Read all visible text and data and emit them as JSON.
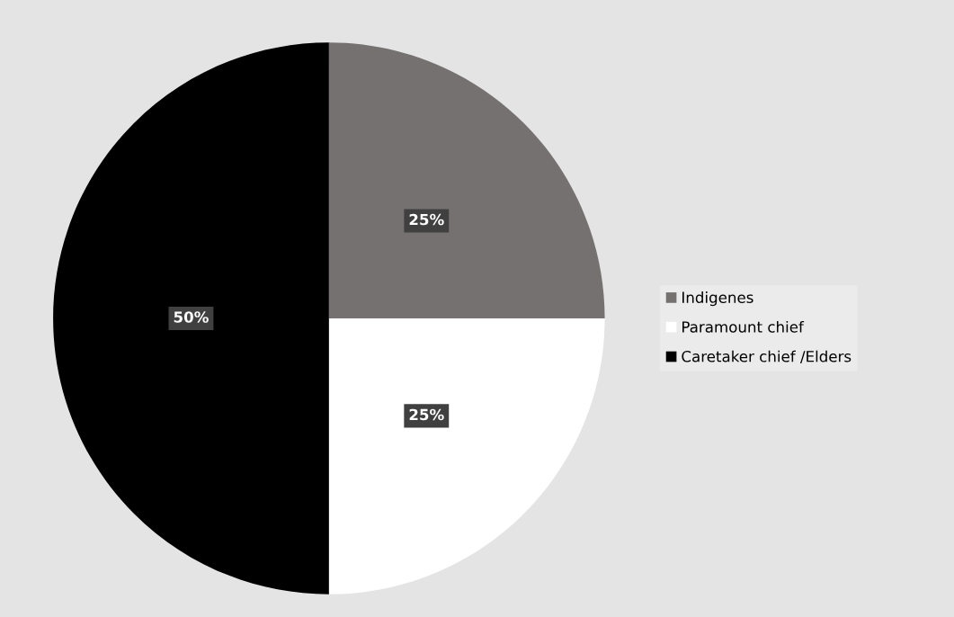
{
  "chart_data": {
    "type": "pie",
    "categories": [
      "Indigenes",
      "Paramount chief",
      "Caretaker chief /Elders"
    ],
    "values": [
      25,
      25,
      50
    ],
    "colors": [
      "#767171",
      "#ffffff",
      "#000000"
    ],
    "value_labels": [
      "25%",
      "25%",
      "50%"
    ],
    "legend": "right"
  }
}
